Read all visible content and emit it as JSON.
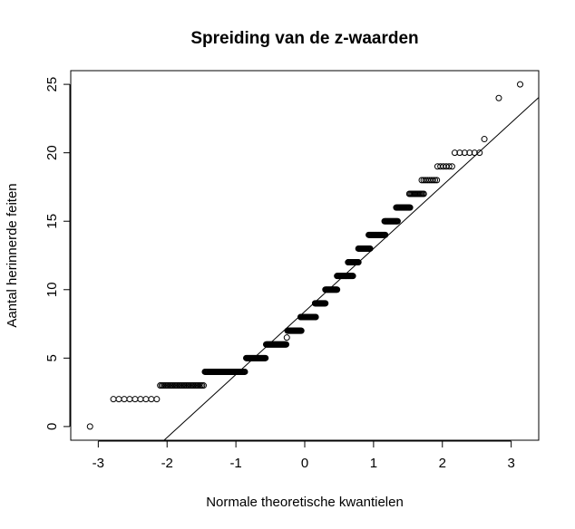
{
  "chart_data": {
    "type": "scatter",
    "title": "Spreiding van de z-waarden",
    "xlabel": "Normale theoretische kwantielen",
    "ylabel": "Aantal herinnerde feiten",
    "xlim": [
      -3.4,
      3.4
    ],
    "ylim": [
      -1.0,
      26.0
    ],
    "x_ticks": [
      -3,
      -2,
      -1,
      0,
      1,
      2,
      3
    ],
    "y_ticks": [
      0,
      5,
      10,
      15,
      20,
      25
    ],
    "grid": false,
    "legend": "none",
    "reference_line": {
      "intercept": 8.4,
      "slope": 4.6
    },
    "groups": [
      {
        "y": 0,
        "x_from": -3.12,
        "x_to": -3.12,
        "count": 1
      },
      {
        "y": 2,
        "x_from": -2.78,
        "x_to": -2.15,
        "count": 9
      },
      {
        "y": 3,
        "x_from": -2.1,
        "x_to": -1.47,
        "count": 30
      },
      {
        "y": 4,
        "x_from": -1.45,
        "x_to": -0.87,
        "count": 60
      },
      {
        "y": 5,
        "x_from": -0.85,
        "x_to": -0.57,
        "count": 40
      },
      {
        "y": 6,
        "x_from": -0.56,
        "x_to": -0.27,
        "count": 40
      },
      {
        "y": 6.5,
        "x_from": -0.26,
        "x_to": -0.26,
        "count": 1
      },
      {
        "y": 7,
        "x_from": -0.25,
        "x_to": -0.05,
        "count": 30
      },
      {
        "y": 8,
        "x_from": -0.06,
        "x_to": 0.16,
        "count": 30
      },
      {
        "y": 9,
        "x_from": 0.15,
        "x_to": 0.3,
        "count": 20
      },
      {
        "y": 10,
        "x_from": 0.3,
        "x_to": 0.47,
        "count": 20
      },
      {
        "y": 11,
        "x_from": 0.47,
        "x_to": 0.7,
        "count": 25
      },
      {
        "y": 12,
        "x_from": 0.63,
        "x_to": 0.78,
        "count": 20
      },
      {
        "y": 13,
        "x_from": 0.78,
        "x_to": 0.95,
        "count": 20
      },
      {
        "y": 14,
        "x_from": 0.93,
        "x_to": 1.17,
        "count": 25
      },
      {
        "y": 15,
        "x_from": 1.16,
        "x_to": 1.35,
        "count": 20
      },
      {
        "y": 16,
        "x_from": 1.33,
        "x_to": 1.53,
        "count": 20
      },
      {
        "y": 17,
        "x_from": 1.52,
        "x_to": 1.73,
        "count": 14
      },
      {
        "y": 18,
        "x_from": 1.7,
        "x_to": 1.92,
        "count": 9
      },
      {
        "y": 19,
        "x_from": 1.93,
        "x_to": 2.14,
        "count": 6
      },
      {
        "y": 20,
        "x_from": 2.18,
        "x_to": 2.54,
        "count": 6
      },
      {
        "y": 21,
        "x_from": 2.61,
        "x_to": 2.61,
        "count": 1
      },
      {
        "y": 24,
        "x_from": 2.82,
        "x_to": 2.82,
        "count": 1
      },
      {
        "y": 25,
        "x_from": 3.13,
        "x_to": 3.13,
        "count": 1
      }
    ]
  }
}
